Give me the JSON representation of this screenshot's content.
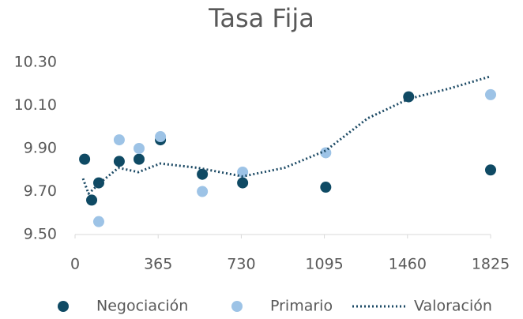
{
  "chart_data": {
    "type": "scatter",
    "title": "Tasa Fija",
    "xlim": [
      0,
      1825
    ],
    "xticks": [
      0,
      365,
      730,
      1095,
      1460,
      1825
    ],
    "ylim": [
      9.5,
      10.3
    ],
    "yticks": [
      {
        "value": 9.5,
        "label": "9.50"
      },
      {
        "value": 9.7,
        "label": "9.70"
      },
      {
        "value": 9.9,
        "label": "9.90"
      },
      {
        "value": 10.1,
        "label": "10.10"
      },
      {
        "value": 10.3,
        "label": "10.30"
      }
    ],
    "grid": false,
    "legend": "bottom",
    "series": [
      {
        "name": "Negociación",
        "type": "scatter",
        "color": "#0f4a64",
        "x": [
          42,
          73,
          104,
          194,
          281,
          375,
          559,
          736,
          1101,
          1465,
          1825
        ],
        "values": [
          9.85,
          9.66,
          9.74,
          9.84,
          9.85,
          9.94,
          9.78,
          9.74,
          9.72,
          10.14,
          9.8
        ]
      },
      {
        "name": "Primario",
        "type": "scatter",
        "color": "#9dc3e6",
        "x": [
          104,
          194,
          281,
          375,
          559,
          736,
          1101,
          1825
        ],
        "values": [
          9.56,
          9.94,
          9.9,
          9.955,
          9.7,
          9.79,
          9.88,
          10.15
        ]
      },
      {
        "name": "Valoración",
        "type": "line",
        "color": "#1b4964",
        "x": [
          35,
          59,
          121,
          191,
          278,
          375,
          538,
          736,
          920,
          1101,
          1285,
          1465,
          1649,
          1825
        ],
        "values": [
          9.76,
          9.69,
          9.75,
          9.81,
          9.79,
          9.83,
          9.81,
          9.77,
          9.81,
          9.89,
          10.04,
          10.13,
          10.18,
          10.235
        ]
      }
    ]
  }
}
